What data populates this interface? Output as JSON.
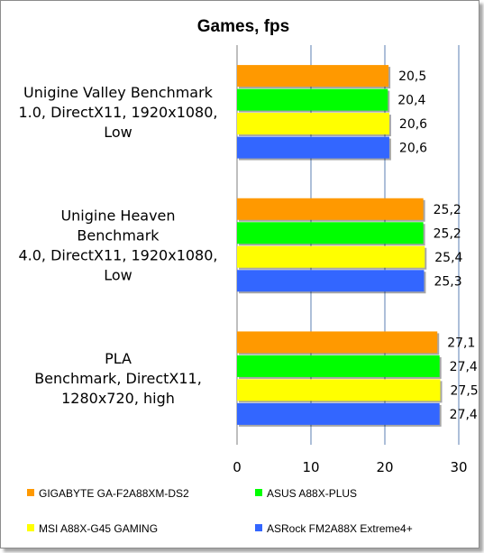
{
  "chart_data": {
    "type": "bar",
    "orientation": "horizontal",
    "title": "Games,  fps",
    "categories": [
      [
        "Unigine Valley Benchmark",
        "1.0, DirectX11, 1920x1080,",
        "Low"
      ],
      [
        "Unigine Heaven",
        "Benchmark",
        "4.0, DirectX11, 1920x1080,",
        "Low"
      ],
      [
        "PLA",
        "Benchmark, DirectX11,",
        "1280x720, high"
      ]
    ],
    "series": [
      {
        "name": "GIGABYTE GA-F2A88XM-DS2",
        "color": "#ff9900",
        "values": [
          20.5,
          25.2,
          27.1
        ],
        "labels": [
          "20,5",
          "25,2",
          "27,1"
        ]
      },
      {
        "name": "ASUS A88X-PLUS",
        "color": "#00ff00",
        "values": [
          20.4,
          25.2,
          27.4
        ],
        "labels": [
          "20,4",
          "25,2",
          "27,4"
        ]
      },
      {
        "name": "MSI A88X-G45 GAMING",
        "color": "#ffff00",
        "values": [
          20.6,
          25.4,
          27.5
        ],
        "labels": [
          "20,6",
          "25,4",
          "27,5"
        ]
      },
      {
        "name": "ASRock FM2A88X Extreme4+",
        "color": "#3366ff",
        "values": [
          20.6,
          25.3,
          27.4
        ],
        "labels": [
          "20,6",
          "25,3",
          "27,4"
        ]
      }
    ],
    "xlim": [
      0,
      30
    ],
    "xticks": [
      "0",
      "10",
      "20",
      "30"
    ],
    "grid": true,
    "legend_position": "bottom"
  }
}
